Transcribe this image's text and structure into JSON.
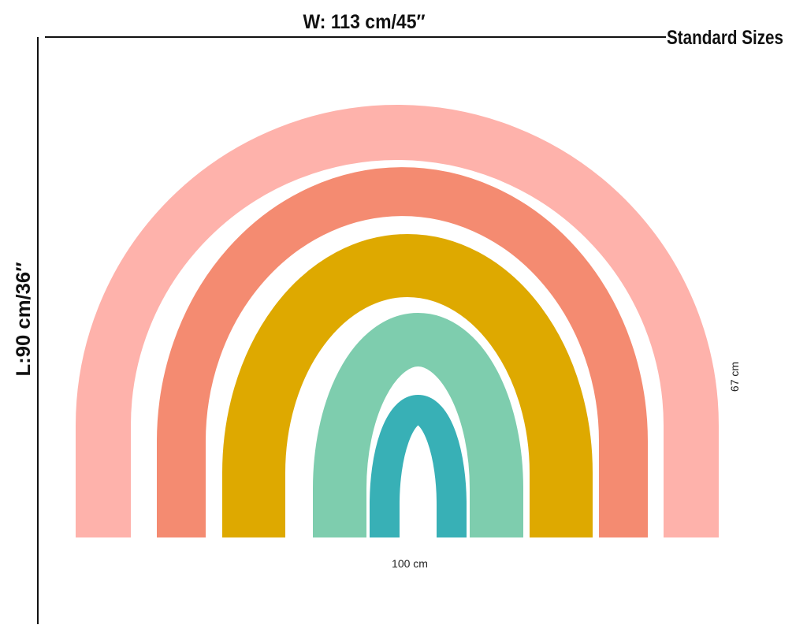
{
  "header": {
    "width_label": "W: 113 cm/45″",
    "sizes_label": "Standard Sizes"
  },
  "side": {
    "length_label": "L:90 cm/36″"
  },
  "product": {
    "height_label": "67 cm",
    "width_label": "100 cm"
  }
}
